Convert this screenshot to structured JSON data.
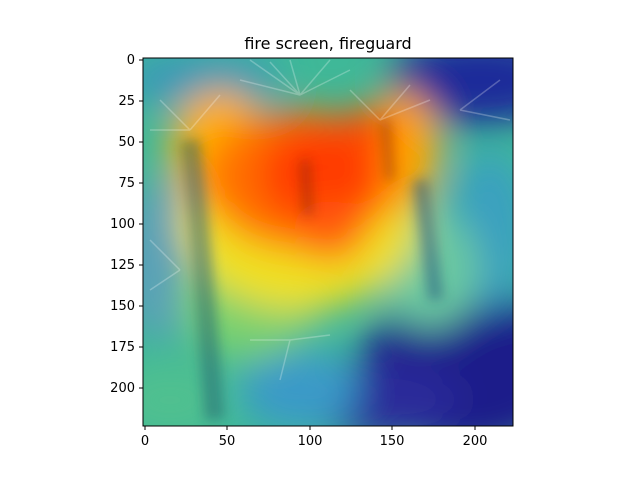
{
  "figure": {
    "title": "fire screen, fireguard"
  },
  "image": {
    "description_label": "Grad-CAM heatmap overlay on a photo of palm trees",
    "width_units": 224,
    "height_units": 224,
    "colormap": "jet",
    "colors": {
      "hot": "#ff2a00",
      "warm": "#ffd000",
      "mid": "#4fd6a0",
      "cool": "#2a9ad0",
      "cold": "#1a1a8a",
      "deep": "#08106e"
    }
  },
  "axes": {
    "x_ticks": [
      "0",
      "50",
      "100",
      "150",
      "200"
    ],
    "y_ticks": [
      "0",
      "25",
      "50",
      "75",
      "100",
      "125",
      "150",
      "175",
      "200"
    ],
    "xlim": [
      0,
      224
    ],
    "ylim": [
      0,
      224
    ]
  }
}
